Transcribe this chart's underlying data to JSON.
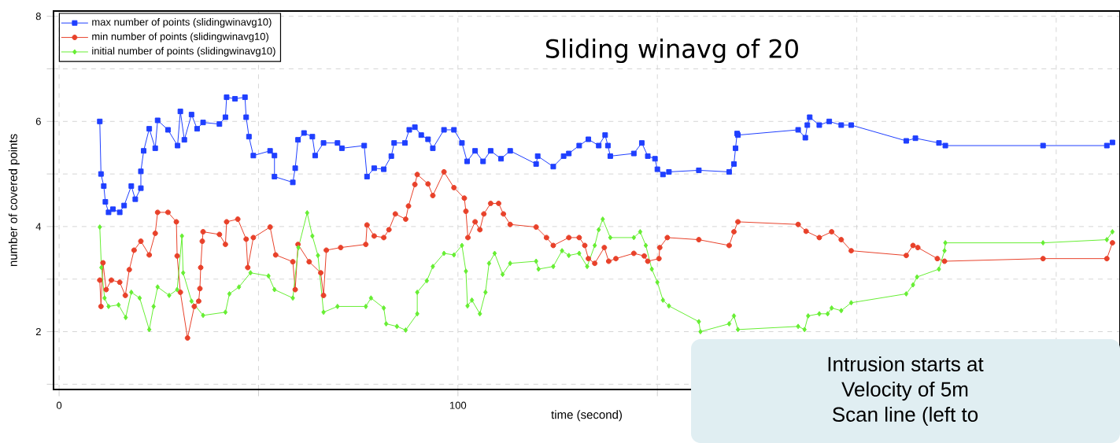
{
  "chart_data": {
    "type": "line",
    "title": "Sliding winavg of 20",
    "xlabel": "time (second)",
    "ylabel": "number of covered points",
    "annotations": [
      "Intrusion starts at",
      "Velocity of 5m",
      "Scan line (left to"
    ],
    "xlim": [
      -1.4,
      266
    ],
    "ylim": [
      0.9,
      8.1
    ],
    "xticks": [
      0,
      {
        "value": 50,
        "label": null
      },
      100,
      {
        "value": 150,
        "label": null
      },
      {
        "value": 200,
        "label": null
      },
      {
        "value": 250,
        "label": null
      }
    ],
    "yticks": [
      {
        "value": 1,
        "label": null
      },
      2,
      {
        "value": 3,
        "label": null
      },
      4,
      {
        "value": 5,
        "label": null
      },
      6,
      {
        "value": 7,
        "label": null
      },
      8
    ],
    "grid": true,
    "legend": "top left",
    "line_style": "solid",
    "series": [
      {
        "name": "max number of points (slidingwinavg10)",
        "color": "#1f3fff",
        "marker": "square",
        "x": [
          10.2,
          10.5,
          11.2,
          11.6,
          12.4,
          13.5,
          15.2,
          16.3,
          18.1,
          19.1,
          20.5,
          20.5,
          21.2,
          22.6,
          24.1,
          24.7,
          27.3,
          29.7,
          30.4,
          31.4,
          33.2,
          34.6,
          36.1,
          40.2,
          41.7,
          42.0,
          44.1,
          46.6,
          46.9,
          47.6,
          48.7,
          52.9,
          54.0,
          54.0,
          58.6,
          59.2,
          59.9,
          61.4,
          63.5,
          64.2,
          66.3,
          69.8,
          70.9,
          76.5,
          77.2,
          79.0,
          81.4,
          83.3,
          84.0,
          86.7,
          87.8,
          89.2,
          90.8,
          92.5,
          93.7,
          96.5,
          99.0,
          101.0,
          102.3,
          104.3,
          106.3,
          108.2,
          110.8,
          113.1,
          119.6,
          120.0,
          123.9,
          126.5,
          127.8,
          130.4,
          132.7,
          135.3,
          136.9,
          137.6,
          138.2,
          144.1,
          146.1,
          147.6,
          149.4,
          150.0,
          151.4,
          152.9,
          160.4,
          168.0,
          169.2,
          169.6,
          170.0,
          170.2,
          185.3,
          187.1,
          187.6,
          188.2,
          190.6,
          193.1,
          196.1,
          198.6,
          212.4,
          214.7,
          220.6,
          222.2,
          246.7,
          262.7,
          264.1
        ],
        "values": [
          6.0,
          5.0,
          4.77,
          4.47,
          4.27,
          4.33,
          4.27,
          4.4,
          4.77,
          4.52,
          4.73,
          5.05,
          5.44,
          5.86,
          5.49,
          6.02,
          5.84,
          5.54,
          6.19,
          5.65,
          6.13,
          5.86,
          5.98,
          5.95,
          6.08,
          6.46,
          6.43,
          6.46,
          6.08,
          5.71,
          5.35,
          5.44,
          5.35,
          4.95,
          4.84,
          5.11,
          5.65,
          5.78,
          5.71,
          5.35,
          5.59,
          5.59,
          5.49,
          5.54,
          4.95,
          5.11,
          5.09,
          5.34,
          5.59,
          5.59,
          5.84,
          5.89,
          5.74,
          5.66,
          5.49,
          5.84,
          5.84,
          5.59,
          5.24,
          5.44,
          5.24,
          5.44,
          5.29,
          5.44,
          5.19,
          5.34,
          5.14,
          5.34,
          5.39,
          5.54,
          5.66,
          5.54,
          5.74,
          5.54,
          5.34,
          5.39,
          5.59,
          5.34,
          5.29,
          5.09,
          4.99,
          5.04,
          5.07,
          5.04,
          5.19,
          5.49,
          5.77,
          5.74,
          5.84,
          5.69,
          5.93,
          6.08,
          5.93,
          6.0,
          5.93,
          5.93,
          5.63,
          5.68,
          5.59,
          5.54,
          5.54,
          5.54,
          5.6
        ]
      },
      {
        "name": "min number of points (slidingwinavg10)",
        "color": "#e8412a",
        "marker": "circle",
        "x": [
          10.2,
          10.5,
          11.0,
          11.8,
          13.1,
          15.2,
          16.6,
          17.6,
          18.8,
          20.5,
          22.6,
          24.1,
          24.7,
          27.3,
          29.4,
          29.6,
          30.4,
          32.2,
          33.9,
          35.0,
          35.3,
          35.5,
          35.9,
          36.1,
          40.2,
          41.7,
          42.0,
          44.8,
          46.9,
          47.3,
          48.7,
          52.9,
          54.3,
          58.6,
          59.2,
          59.9,
          62.7,
          65.6,
          66.3,
          67.0,
          70.6,
          76.9,
          77.2,
          79.0,
          81.4,
          82.7,
          84.3,
          86.9,
          87.6,
          89.2,
          89.8,
          92.5,
          93.7,
          96.5,
          99.0,
          101.6,
          102.0,
          102.5,
          104.3,
          105.5,
          106.5,
          108.2,
          110.2,
          111.4,
          113.1,
          119.6,
          122.2,
          123.9,
          127.8,
          130.4,
          131.8,
          132.7,
          134.3,
          136.7,
          137.8,
          139.6,
          144.1,
          146.7,
          147.6,
          150.4,
          150.6,
          152.5,
          160.4,
          168.0,
          169.2,
          170.2,
          185.3,
          187.3,
          190.6,
          193.7,
          196.1,
          198.6,
          212.4,
          214.1,
          215.3,
          220.2,
          222.0,
          246.7,
          262.7,
          264.1
        ],
        "values": [
          2.98,
          2.48,
          3.31,
          2.8,
          2.98,
          2.94,
          2.69,
          3.18,
          3.55,
          3.72,
          3.46,
          3.87,
          4.27,
          4.27,
          4.09,
          3.44,
          2.75,
          1.88,
          2.48,
          2.58,
          2.82,
          3.22,
          3.72,
          3.9,
          3.85,
          3.66,
          4.09,
          4.14,
          3.76,
          3.22,
          3.79,
          3.99,
          3.46,
          3.33,
          2.8,
          3.66,
          3.33,
          3.12,
          2.69,
          3.55,
          3.6,
          3.66,
          4.03,
          3.82,
          3.79,
          3.94,
          4.24,
          4.14,
          4.39,
          4.8,
          4.99,
          4.81,
          4.59,
          5.04,
          4.74,
          4.54,
          4.29,
          3.79,
          4.09,
          3.94,
          4.24,
          4.44,
          4.44,
          4.24,
          4.04,
          3.99,
          3.79,
          3.64,
          3.79,
          3.79,
          3.64,
          3.39,
          3.3,
          3.6,
          3.34,
          3.39,
          3.49,
          3.44,
          3.34,
          3.39,
          3.6,
          3.79,
          3.75,
          3.64,
          3.9,
          4.09,
          4.04,
          3.91,
          3.79,
          3.9,
          3.75,
          3.54,
          3.45,
          3.64,
          3.6,
          3.39,
          3.34,
          3.39,
          3.39,
          3.69
        ]
      },
      {
        "name": "initial number of points (slidingwinavg10)",
        "color": "#66ee33",
        "marker": "diamond",
        "x": [
          10.2,
          10.6,
          11.4,
          12.4,
          14.9,
          16.7,
          18.1,
          20.2,
          22.6,
          23.7,
          24.7,
          27.6,
          29.6,
          30.8,
          31.1,
          33.2,
          36.1,
          41.7,
          42.7,
          45.1,
          48.0,
          52.5,
          54.0,
          58.6,
          60.0,
          62.2,
          63.5,
          64.9,
          66.3,
          69.8,
          76.9,
          78.2,
          81.4,
          82.0,
          84.7,
          86.9,
          89.8,
          89.8,
          92.2,
          93.7,
          96.5,
          99.0,
          101.0,
          102.0,
          102.4,
          103.5,
          105.5,
          106.9,
          107.8,
          109.2,
          111.2,
          113.1,
          119.6,
          120.2,
          123.9,
          126.1,
          127.8,
          130.4,
          132.4,
          134.3,
          135.3,
          136.3,
          138.2,
          144.1,
          145.7,
          147.1,
          148.6,
          150.0,
          151.4,
          152.9,
          160.4,
          160.8,
          168.0,
          169.2,
          170.2,
          185.3,
          186.9,
          187.8,
          190.6,
          192.7,
          193.7,
          196.1,
          198.6,
          212.4,
          214.1,
          215.1,
          220.6,
          222.0,
          222.2,
          246.7,
          262.7,
          264.1
        ],
        "values": [
          3.99,
          3.22,
          2.64,
          2.48,
          2.51,
          2.27,
          2.75,
          2.64,
          2.04,
          2.48,
          2.85,
          2.69,
          2.8,
          3.82,
          3.12,
          2.58,
          2.31,
          2.37,
          2.72,
          2.85,
          3.12,
          3.06,
          2.8,
          2.64,
          3.6,
          4.26,
          3.82,
          3.45,
          2.37,
          2.48,
          2.48,
          2.64,
          2.45,
          2.15,
          2.1,
          2.03,
          2.34,
          2.75,
          2.97,
          3.24,
          3.49,
          3.46,
          3.64,
          3.15,
          2.49,
          2.6,
          2.34,
          2.75,
          3.3,
          3.49,
          3.09,
          3.3,
          3.34,
          3.19,
          3.24,
          3.54,
          3.45,
          3.49,
          3.24,
          3.64,
          3.94,
          4.14,
          3.79,
          3.79,
          3.9,
          3.64,
          3.19,
          2.94,
          2.6,
          2.49,
          2.19,
          2.0,
          2.15,
          2.3,
          2.04,
          2.1,
          2.04,
          2.3,
          2.34,
          2.34,
          2.45,
          2.4,
          2.55,
          2.72,
          2.89,
          3.04,
          3.19,
          3.54,
          3.69,
          3.69,
          3.75,
          3.9
        ]
      }
    ]
  }
}
